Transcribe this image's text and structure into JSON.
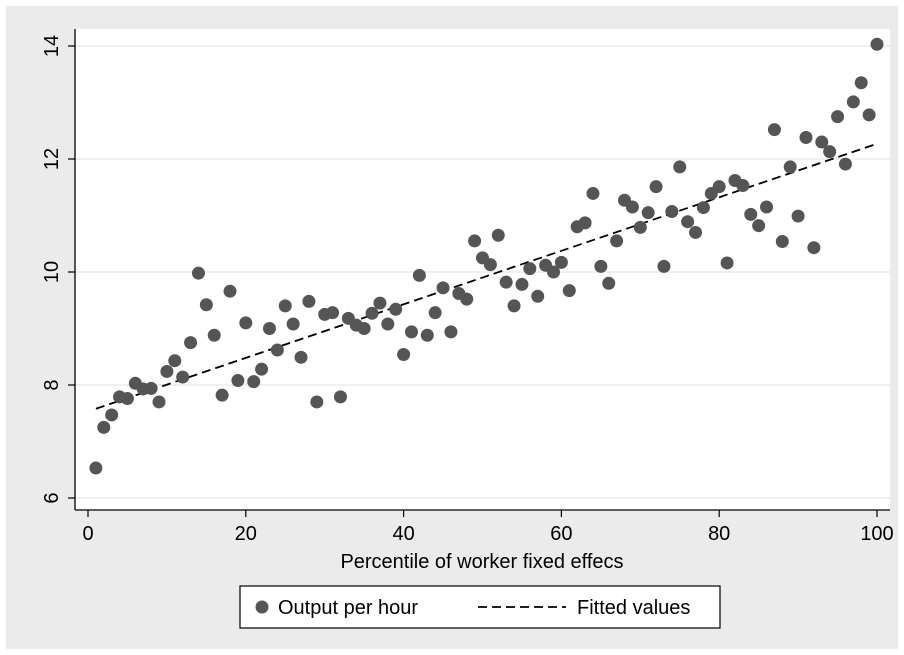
{
  "chart_data": {
    "type": "scatter",
    "title": "",
    "xlabel": "Percentile of worker fixed effecs",
    "ylabel": "",
    "xlim": [
      0,
      100
    ],
    "ylim": [
      6,
      14
    ],
    "xticks": [
      "0",
      "20",
      "40",
      "60",
      "80",
      "100"
    ],
    "yticks": [
      "6",
      "8",
      "10",
      "12",
      "14"
    ],
    "grid": "horizontal",
    "legend_position": "bottom",
    "series": [
      {
        "name": "Output per hour",
        "kind": "scatter",
        "color": "#555555",
        "x": [
          1,
          2,
          3,
          4,
          5,
          6,
          7,
          8,
          9,
          10,
          11,
          12,
          13,
          14,
          15,
          16,
          17,
          18,
          19,
          20,
          21,
          22,
          23,
          24,
          25,
          26,
          27,
          28,
          29,
          30,
          31,
          32,
          33,
          34,
          35,
          36,
          37,
          38,
          39,
          40,
          41,
          42,
          43,
          44,
          45,
          46,
          47,
          48,
          49,
          50,
          51,
          52,
          53,
          54,
          55,
          56,
          57,
          58,
          59,
          60,
          61,
          62,
          63,
          64,
          65,
          66,
          67,
          68,
          69,
          70,
          71,
          72,
          73,
          74,
          75,
          76,
          77,
          78,
          79,
          80,
          81,
          82,
          83,
          84,
          85,
          86,
          87,
          88,
          89,
          90,
          91,
          92,
          93,
          94,
          95,
          96,
          97,
          98,
          99,
          100
        ],
        "y": [
          6.53,
          7.25,
          7.47,
          7.79,
          7.76,
          8.03,
          7.93,
          7.94,
          7.7,
          8.24,
          8.43,
          8.14,
          8.75,
          9.98,
          9.42,
          8.88,
          7.82,
          9.66,
          8.08,
          9.1,
          8.06,
          8.28,
          9.0,
          8.62,
          9.4,
          9.08,
          8.49,
          9.48,
          7.7,
          9.25,
          9.28,
          7.79,
          9.18,
          9.06,
          9.0,
          9.27,
          9.45,
          9.08,
          9.34,
          8.54,
          8.94,
          9.94,
          8.88,
          9.28,
          9.72,
          8.94,
          9.62,
          9.52,
          10.55,
          10.25,
          10.13,
          10.65,
          9.82,
          9.4,
          9.78,
          10.06,
          9.57,
          10.12,
          10.0,
          10.17,
          9.67,
          10.8,
          10.87,
          11.39,
          10.1,
          9.8,
          10.55,
          11.27,
          11.15,
          10.79,
          11.05,
          11.51,
          10.1,
          11.07,
          11.86,
          10.89,
          10.7,
          11.14,
          11.39,
          11.51,
          10.16,
          11.62,
          11.53,
          11.02,
          10.82,
          11.15,
          12.52,
          10.54,
          11.86,
          10.99,
          12.38,
          10.43,
          12.3,
          12.13,
          12.75,
          11.91,
          13.01,
          13.35,
          12.78,
          14.03
        ]
      },
      {
        "name": "Fitted values",
        "kind": "line",
        "style": "dashed",
        "color": "#000000",
        "x": [
          1,
          100
        ],
        "y": [
          7.58,
          12.27
        ]
      }
    ]
  }
}
